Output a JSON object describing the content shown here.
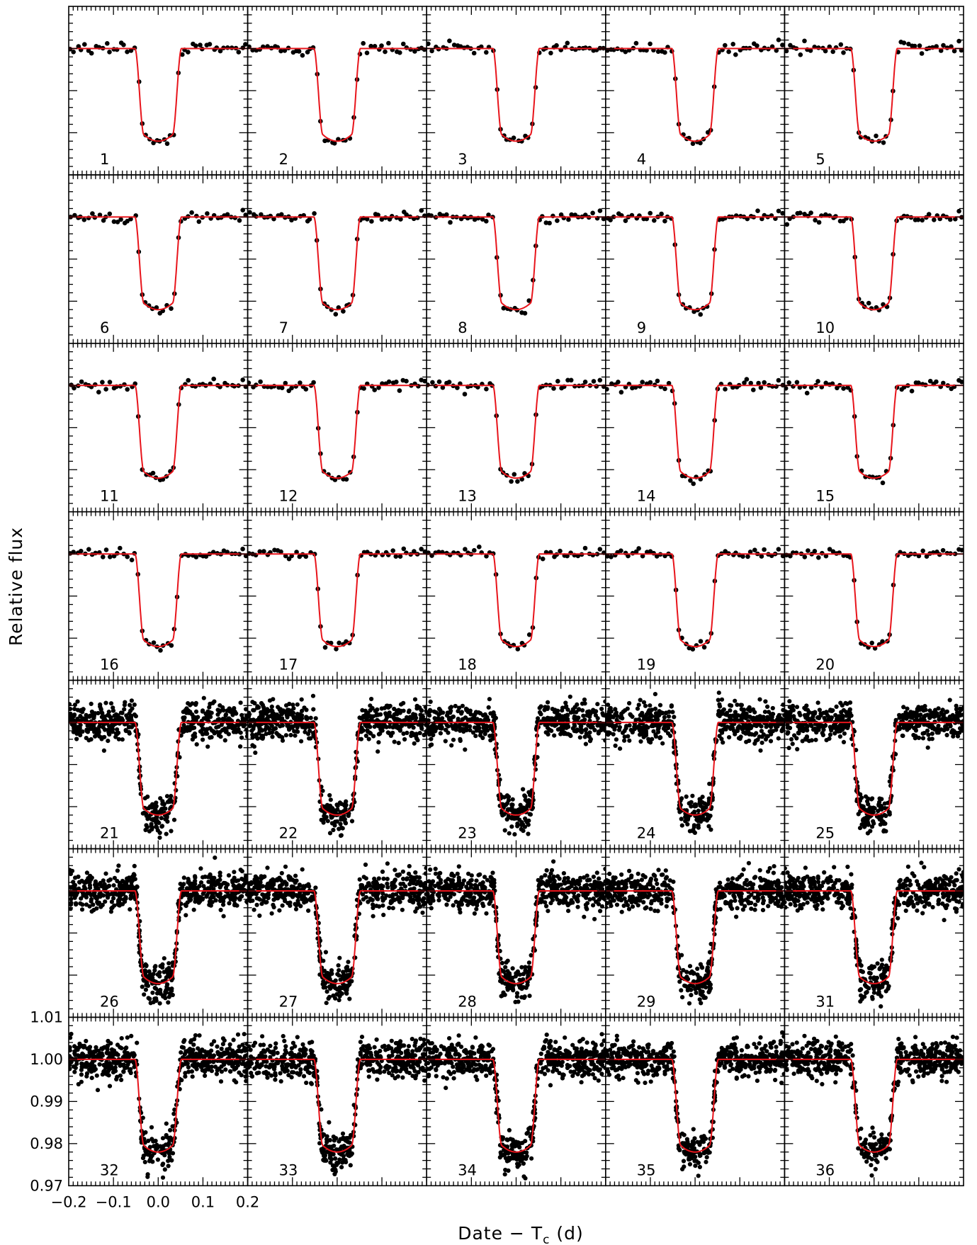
{
  "figure": {
    "ylabel": "Relative flux",
    "xlabel": "Date − T",
    "xlabel_sub": "c",
    "xlabel_unit": " (d)"
  },
  "chart_data": {
    "type": "scatter",
    "layout": "grid 7 rows x 5 columns of light-curve panels, shared axes",
    "xlabel": "Date − Tc (d)",
    "ylabel": "Relative flux",
    "xlim": [
      -0.2,
      0.2
    ],
    "ylim": [
      0.97,
      1.01
    ],
    "x_ticks": [
      -0.2,
      -0.1,
      0.0,
      0.1,
      0.2
    ],
    "x_tick_labels": [
      "−0.2",
      "−0.1",
      "0.0",
      "0.1",
      "0.2"
    ],
    "y_ticks": [
      0.97,
      0.98,
      0.99,
      1.0,
      1.01
    ],
    "y_tick_labels": [
      "0.97",
      "0.98",
      "0.99",
      "1.00",
      "1.01"
    ],
    "model_color": "#e8141b",
    "point_color": "#000000",
    "transit_model": {
      "baseline": 1.0,
      "depth_min": 0.978,
      "t_first_contact": -0.052,
      "t_second_contact": -0.032,
      "t_third_contact": 0.032,
      "t_fourth_contact": 0.052
    },
    "panels": [
      {
        "label": "1",
        "cadence": "sparse",
        "npoints": 50,
        "scatter_sd": 0.0006
      },
      {
        "label": "2",
        "cadence": "sparse",
        "npoints": 50,
        "scatter_sd": 0.0006
      },
      {
        "label": "3",
        "cadence": "sparse",
        "npoints": 50,
        "scatter_sd": 0.0006
      },
      {
        "label": "4",
        "cadence": "sparse",
        "npoints": 50,
        "scatter_sd": 0.0006
      },
      {
        "label": "5",
        "cadence": "sparse",
        "npoints": 50,
        "scatter_sd": 0.0006
      },
      {
        "label": "6",
        "cadence": "sparse",
        "npoints": 50,
        "scatter_sd": 0.0006
      },
      {
        "label": "7",
        "cadence": "sparse",
        "npoints": 50,
        "scatter_sd": 0.0006
      },
      {
        "label": "8",
        "cadence": "sparse",
        "npoints": 50,
        "scatter_sd": 0.0006
      },
      {
        "label": "9",
        "cadence": "sparse",
        "npoints": 50,
        "scatter_sd": 0.0006
      },
      {
        "label": "10",
        "cadence": "sparse",
        "npoints": 50,
        "scatter_sd": 0.0006
      },
      {
        "label": "11",
        "cadence": "sparse",
        "npoints": 50,
        "scatter_sd": 0.0006
      },
      {
        "label": "12",
        "cadence": "sparse",
        "npoints": 50,
        "scatter_sd": 0.0006
      },
      {
        "label": "13",
        "cadence": "sparse",
        "npoints": 50,
        "scatter_sd": 0.0006
      },
      {
        "label": "14",
        "cadence": "sparse",
        "npoints": 50,
        "scatter_sd": 0.0006
      },
      {
        "label": "15",
        "cadence": "sparse",
        "npoints": 50,
        "scatter_sd": 0.0006
      },
      {
        "label": "16",
        "cadence": "sparse",
        "npoints": 50,
        "scatter_sd": 0.0006
      },
      {
        "label": "17",
        "cadence": "sparse",
        "npoints": 50,
        "scatter_sd": 0.0006
      },
      {
        "label": "18",
        "cadence": "sparse",
        "npoints": 50,
        "scatter_sd": 0.0006
      },
      {
        "label": "19",
        "cadence": "sparse",
        "npoints": 50,
        "scatter_sd": 0.0006
      },
      {
        "label": "20",
        "cadence": "sparse",
        "npoints": 50,
        "scatter_sd": 0.0006
      },
      {
        "label": "21",
        "cadence": "dense",
        "npoints": 700,
        "scatter_sd": 0.0022
      },
      {
        "label": "22",
        "cadence": "dense",
        "npoints": 700,
        "scatter_sd": 0.0022
      },
      {
        "label": "23",
        "cadence": "dense",
        "npoints": 700,
        "scatter_sd": 0.0022
      },
      {
        "label": "24",
        "cadence": "dense",
        "npoints": 700,
        "scatter_sd": 0.0022
      },
      {
        "label": "25",
        "cadence": "dense",
        "npoints": 700,
        "scatter_sd": 0.0022
      },
      {
        "label": "26",
        "cadence": "dense",
        "npoints": 700,
        "scatter_sd": 0.0022
      },
      {
        "label": "27",
        "cadence": "dense",
        "npoints": 700,
        "scatter_sd": 0.0022
      },
      {
        "label": "28",
        "cadence": "dense",
        "npoints": 700,
        "scatter_sd": 0.0022
      },
      {
        "label": "29",
        "cadence": "dense",
        "npoints": 700,
        "scatter_sd": 0.0022
      },
      {
        "label": "31",
        "cadence": "dense",
        "npoints": 700,
        "scatter_sd": 0.0022
      },
      {
        "label": "32",
        "cadence": "dense",
        "npoints": 700,
        "scatter_sd": 0.0022
      },
      {
        "label": "33",
        "cadence": "dense",
        "npoints": 700,
        "scatter_sd": 0.0022
      },
      {
        "label": "34",
        "cadence": "dense",
        "npoints": 700,
        "scatter_sd": 0.0022
      },
      {
        "label": "35",
        "cadence": "dense",
        "npoints": 700,
        "scatter_sd": 0.0022
      },
      {
        "label": "36",
        "cadence": "dense",
        "npoints": 700,
        "scatter_sd": 0.0022
      }
    ]
  }
}
